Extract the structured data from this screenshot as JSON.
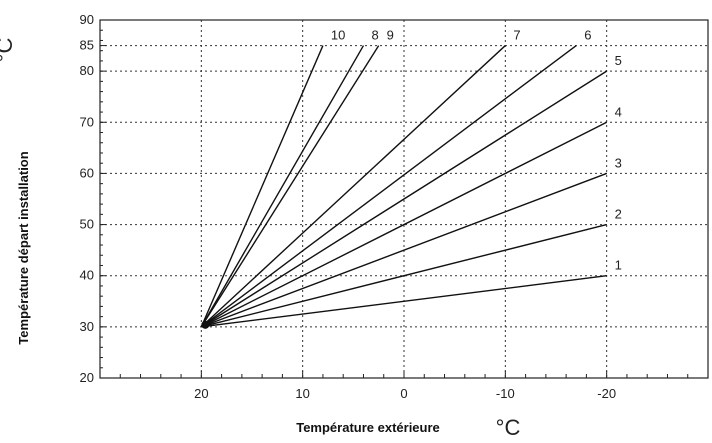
{
  "chart_data": {
    "type": "line",
    "xlabel": "Température extérieure",
    "ylabel": "Température départ installation",
    "x_unit": "°C",
    "y_unit": "°C",
    "xlim": [
      30,
      -30
    ],
    "ylim": [
      20,
      90
    ],
    "x_ticks": [
      20,
      10,
      0,
      -10,
      -20
    ],
    "y_ticks": [
      20,
      30,
      40,
      50,
      60,
      70,
      80,
      85,
      90
    ],
    "grid": true,
    "series": [
      {
        "name": "1",
        "points": [
          [
            20,
            30
          ],
          [
            -20,
            40
          ]
        ]
      },
      {
        "name": "2",
        "points": [
          [
            20,
            30
          ],
          [
            -20,
            50
          ]
        ]
      },
      {
        "name": "3",
        "points": [
          [
            20,
            30
          ],
          [
            -20,
            60
          ]
        ]
      },
      {
        "name": "4",
        "points": [
          [
            20,
            30
          ],
          [
            -20,
            70
          ]
        ]
      },
      {
        "name": "5",
        "points": [
          [
            20,
            30
          ],
          [
            -20,
            80
          ]
        ]
      },
      {
        "name": "6",
        "points": [
          [
            20,
            30
          ],
          [
            -17,
            85
          ]
        ]
      },
      {
        "name": "7",
        "points": [
          [
            20,
            30
          ],
          [
            -10,
            85
          ]
        ]
      },
      {
        "name": "8",
        "points": [
          [
            20,
            30
          ],
          [
            4,
            85
          ]
        ]
      },
      {
        "name": "9",
        "points": [
          [
            20,
            30
          ],
          [
            2.5,
            85
          ]
        ]
      },
      {
        "name": "10",
        "points": [
          [
            20,
            30
          ],
          [
            8,
            85
          ]
        ]
      }
    ]
  }
}
